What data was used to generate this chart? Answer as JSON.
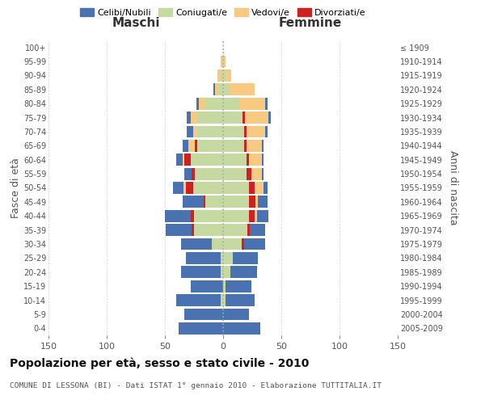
{
  "age_groups": [
    "0-4",
    "5-9",
    "10-14",
    "15-19",
    "20-24",
    "25-29",
    "30-34",
    "35-39",
    "40-44",
    "45-49",
    "50-54",
    "55-59",
    "60-64",
    "65-69",
    "70-74",
    "75-79",
    "80-84",
    "85-89",
    "90-94",
    "95-99",
    "100+"
  ],
  "birth_years": [
    "2005-2009",
    "2000-2004",
    "1995-1999",
    "1990-1994",
    "1985-1989",
    "1980-1984",
    "1975-1979",
    "1970-1974",
    "1965-1969",
    "1960-1964",
    "1955-1959",
    "1950-1954",
    "1945-1949",
    "1940-1944",
    "1935-1939",
    "1930-1934",
    "1925-1929",
    "1920-1924",
    "1915-1919",
    "1910-1914",
    "≤ 1909"
  ],
  "colors": {
    "celibi": "#4a72b0",
    "coniugati": "#c6d9a0",
    "vedovi": "#f8c980",
    "divorziati": "#cc2222"
  },
  "maschi": {
    "celibi": [
      38,
      33,
      38,
      28,
      34,
      30,
      26,
      22,
      22,
      18,
      9,
      6,
      5,
      5,
      5,
      3,
      2,
      1,
      0,
      0,
      0
    ],
    "coniugati": [
      0,
      0,
      2,
      0,
      2,
      2,
      10,
      25,
      25,
      15,
      26,
      24,
      28,
      22,
      22,
      22,
      16,
      5,
      2,
      0,
      0
    ],
    "divorziati": [
      0,
      0,
      0,
      0,
      0,
      0,
      0,
      2,
      3,
      2,
      6,
      3,
      5,
      2,
      0,
      0,
      0,
      0,
      0,
      0,
      0
    ],
    "vedovi": [
      0,
      0,
      0,
      0,
      0,
      0,
      0,
      0,
      0,
      0,
      2,
      0,
      2,
      6,
      4,
      6,
      5,
      2,
      3,
      2,
      0
    ]
  },
  "femmine": {
    "nubili": [
      32,
      22,
      25,
      22,
      23,
      22,
      18,
      13,
      10,
      8,
      3,
      2,
      2,
      2,
      2,
      2,
      2,
      0,
      0,
      0,
      0
    ],
    "coniugate": [
      0,
      0,
      2,
      2,
      6,
      8,
      16,
      21,
      22,
      22,
      22,
      20,
      20,
      18,
      18,
      17,
      14,
      5,
      2,
      0,
      0
    ],
    "divorziati": [
      0,
      0,
      0,
      0,
      0,
      0,
      2,
      2,
      5,
      6,
      5,
      4,
      2,
      2,
      2,
      2,
      0,
      0,
      0,
      0,
      0
    ],
    "vedove": [
      0,
      0,
      0,
      0,
      0,
      0,
      0,
      0,
      2,
      2,
      8,
      9,
      11,
      13,
      16,
      20,
      22,
      22,
      5,
      2,
      0
    ]
  },
  "title": "Popolazione per età, sesso e stato civile - 2010",
  "subtitle": "COMUNE DI LESSONA (BI) - Dati ISTAT 1° gennaio 2010 - Elaborazione TUTTITALIA.IT",
  "xlabel_maschi": "Maschi",
  "xlabel_femmine": "Femmine",
  "ylabel_left": "Fasce di età",
  "ylabel_right": "Anni di nascita",
  "xlim": 150,
  "background_color": "#ffffff",
  "grid_color": "#cccccc"
}
